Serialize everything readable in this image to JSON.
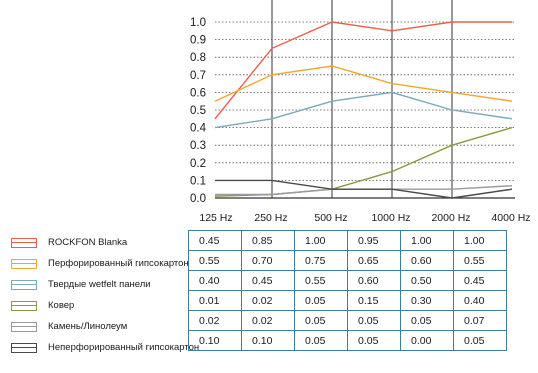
{
  "chart_data": {
    "type": "line",
    "categories": [
      "125 Hz",
      "250 Hz",
      "500 Hz",
      "1000 Hz",
      "2000 Hz",
      "4000 Hz"
    ],
    "y_ticks": [
      "0.0",
      "0.1",
      "0.2",
      "0.3",
      "0.4",
      "0.5",
      "0.6",
      "0.7",
      "0.8",
      "0.9",
      "1.0"
    ],
    "ylim": [
      0,
      1.0
    ],
    "grid": true,
    "series": [
      {
        "name": "ROCKFON Blanka",
        "color": "#e8604c",
        "values": [
          0.45,
          0.85,
          1.0,
          0.95,
          1.0,
          1.0
        ],
        "cells": [
          "0.45",
          "0.85",
          "1.00",
          "0.95",
          "1.00",
          "1.00"
        ]
      },
      {
        "name": "Перфорированный гипсокартон",
        "color": "#f0a830",
        "values": [
          0.55,
          0.7,
          0.75,
          0.65,
          0.6,
          0.55
        ],
        "cells": [
          "0.55",
          "0.70",
          "0.75",
          "0.65",
          "0.60",
          "0.55"
        ]
      },
      {
        "name": "Твердые wetfelt панели",
        "color": "#7aaabb",
        "values": [
          0.4,
          0.45,
          0.55,
          0.6,
          0.5,
          0.45
        ],
        "cells": [
          "0.40",
          "0.45",
          "0.55",
          "0.60",
          "0.50",
          "0.45"
        ]
      },
      {
        "name": "Ковер",
        "color": "#8a9a3c",
        "values": [
          0.01,
          0.02,
          0.05,
          0.15,
          0.3,
          0.4
        ],
        "cells": [
          "0.01",
          "0.02",
          "0.05",
          "0.15",
          "0.30",
          "0.40"
        ]
      },
      {
        "name": "Камень/Линолеум",
        "color": "#9a9a9a",
        "values": [
          0.02,
          0.02,
          0.05,
          0.05,
          0.05,
          0.07
        ],
        "cells": [
          "0.02",
          "0.02",
          "0.05",
          "0.05",
          "0.05",
          "0.07"
        ]
      },
      {
        "name": "Неперфорированный гипсокартон",
        "color": "#4a4a4a",
        "values": [
          0.1,
          0.1,
          0.05,
          0.05,
          0.0,
          0.05
        ],
        "cells": [
          "0.10",
          "0.10",
          "0.05",
          "0.05",
          "0.00",
          "0.05"
        ]
      }
    ]
  }
}
